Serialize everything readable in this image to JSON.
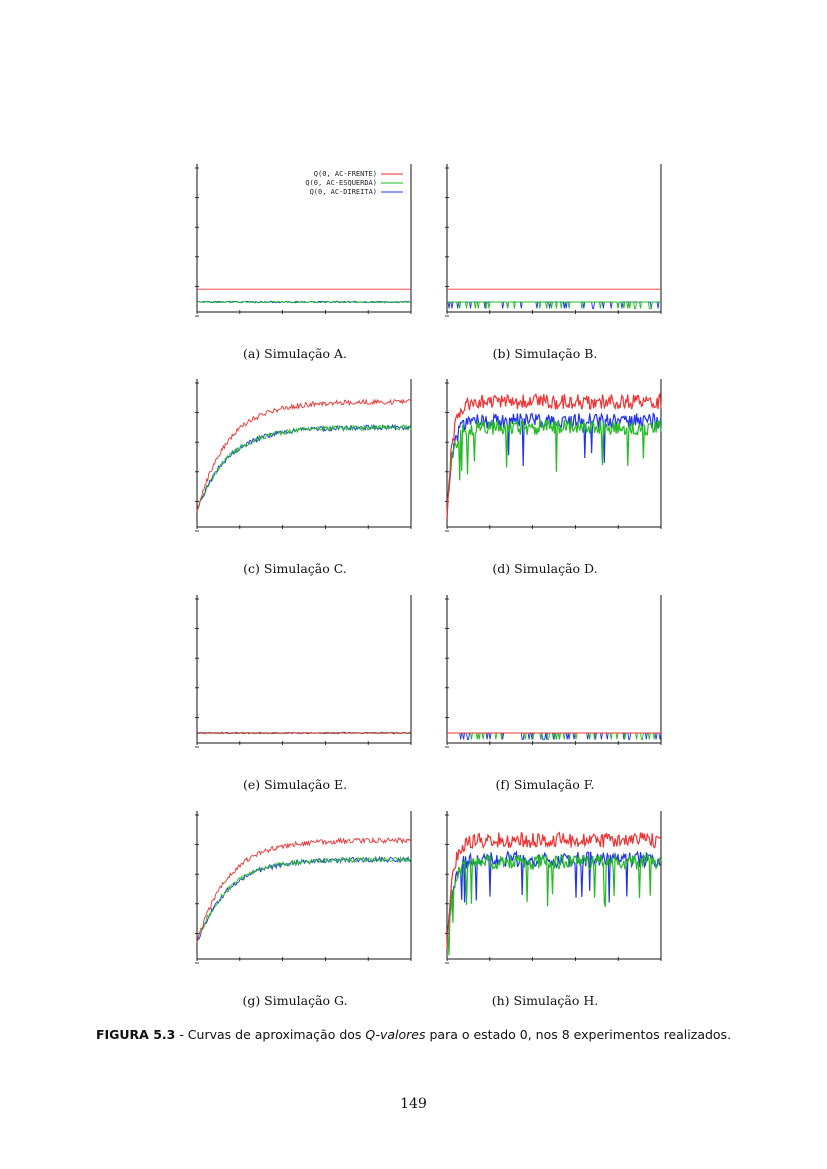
{
  "figure": {
    "caption_label": "FIGURA 5.3",
    "caption_sep": " - Curvas de aproximação dos ",
    "caption_em": "Q-valores",
    "caption_rest": " para o estado 0, nos 8 experimentos realizados.",
    "page_number": "149"
  },
  "colors": {
    "frente": "#ee3333",
    "esquerda": "#22bb22",
    "direita": "#2233ee",
    "axis": "#111111"
  },
  "chart_data": [
    {
      "panel": "a",
      "caption": "(a) Simulação A.",
      "type": "line",
      "legend": [
        "Q(0, AC-FRENTE)",
        "Q(0, AC-ESQUERDA)",
        "Q(0, AC-DIREITA)"
      ],
      "legend_position": "top-right",
      "series": [
        {
          "name": "Q(0, AC-FRENTE)",
          "pattern": "flat",
          "level": 0.1
        },
        {
          "name": "Q(0, AC-ESQUERDA)",
          "pattern": "flat",
          "level": 0.0
        },
        {
          "name": "Q(0, AC-DIREITA)",
          "pattern": "flat",
          "level": 0.0
        }
      ]
    },
    {
      "panel": "b",
      "caption": "(b) Simulação B.",
      "type": "line",
      "series": [
        {
          "name": "Q(0, AC-FRENTE)",
          "pattern": "flat",
          "level": 0.1
        },
        {
          "name": "Q(0, AC-ESQUERDA)",
          "pattern": "spikes",
          "level": 0.0
        },
        {
          "name": "Q(0, AC-DIREITA)",
          "pattern": "spikes",
          "level": 0.0
        }
      ]
    },
    {
      "panel": "c",
      "caption": "(c) Simulação C.",
      "type": "line",
      "series": [
        {
          "name": "Q(0, AC-FRENTE)",
          "pattern": "rise",
          "level": 0.9
        },
        {
          "name": "Q(0, AC-ESQUERDA)",
          "pattern": "rise",
          "level": 0.7
        },
        {
          "name": "Q(0, AC-DIREITA)",
          "pattern": "rise",
          "level": 0.7
        }
      ]
    },
    {
      "panel": "d",
      "caption": "(d) Simulação D.",
      "type": "line",
      "series": [
        {
          "name": "Q(0, AC-FRENTE)",
          "pattern": "noisy",
          "level": 0.9
        },
        {
          "name": "Q(0, AC-ESQUERDA)",
          "pattern": "noisy",
          "level": 0.7
        },
        {
          "name": "Q(0, AC-DIREITA)",
          "pattern": "noisy",
          "level": 0.75
        }
      ]
    },
    {
      "panel": "e",
      "caption": "(e) Simulação E.",
      "type": "line",
      "series": [
        {
          "name": "Q(0, AC-FRENTE)",
          "pattern": "flat",
          "level": 0.0
        },
        {
          "name": "Q(0, AC-ESQUERDA)",
          "pattern": "flat",
          "level": 0.0
        },
        {
          "name": "Q(0, AC-DIREITA)",
          "pattern": "flat",
          "level": 0.0
        }
      ]
    },
    {
      "panel": "f",
      "caption": "(f) Simulação F.",
      "type": "line",
      "series": [
        {
          "name": "Q(0, AC-FRENTE)",
          "pattern": "flat",
          "level": 0.0
        },
        {
          "name": "Q(0, AC-ESQUERDA)",
          "pattern": "spikes",
          "level": 0.0
        },
        {
          "name": "Q(0, AC-DIREITA)",
          "pattern": "spikes",
          "level": 0.0
        }
      ]
    },
    {
      "panel": "g",
      "caption": "(g) Simulação G.",
      "type": "line",
      "series": [
        {
          "name": "Q(0, AC-FRENTE)",
          "pattern": "rise",
          "level": 0.85
        },
        {
          "name": "Q(0, AC-ESQUERDA)",
          "pattern": "rise",
          "level": 0.7
        },
        {
          "name": "Q(0, AC-DIREITA)",
          "pattern": "rise",
          "level": 0.7
        }
      ]
    },
    {
      "panel": "h",
      "caption": "(h) Simulação H.",
      "type": "line",
      "series": [
        {
          "name": "Q(0, AC-FRENTE)",
          "pattern": "noisy",
          "level": 0.85
        },
        {
          "name": "Q(0, AC-ESQUERDA)",
          "pattern": "noisy",
          "level": 0.68
        },
        {
          "name": "Q(0, AC-DIREITA)",
          "pattern": "noisy",
          "level": 0.7
        }
      ]
    }
  ]
}
